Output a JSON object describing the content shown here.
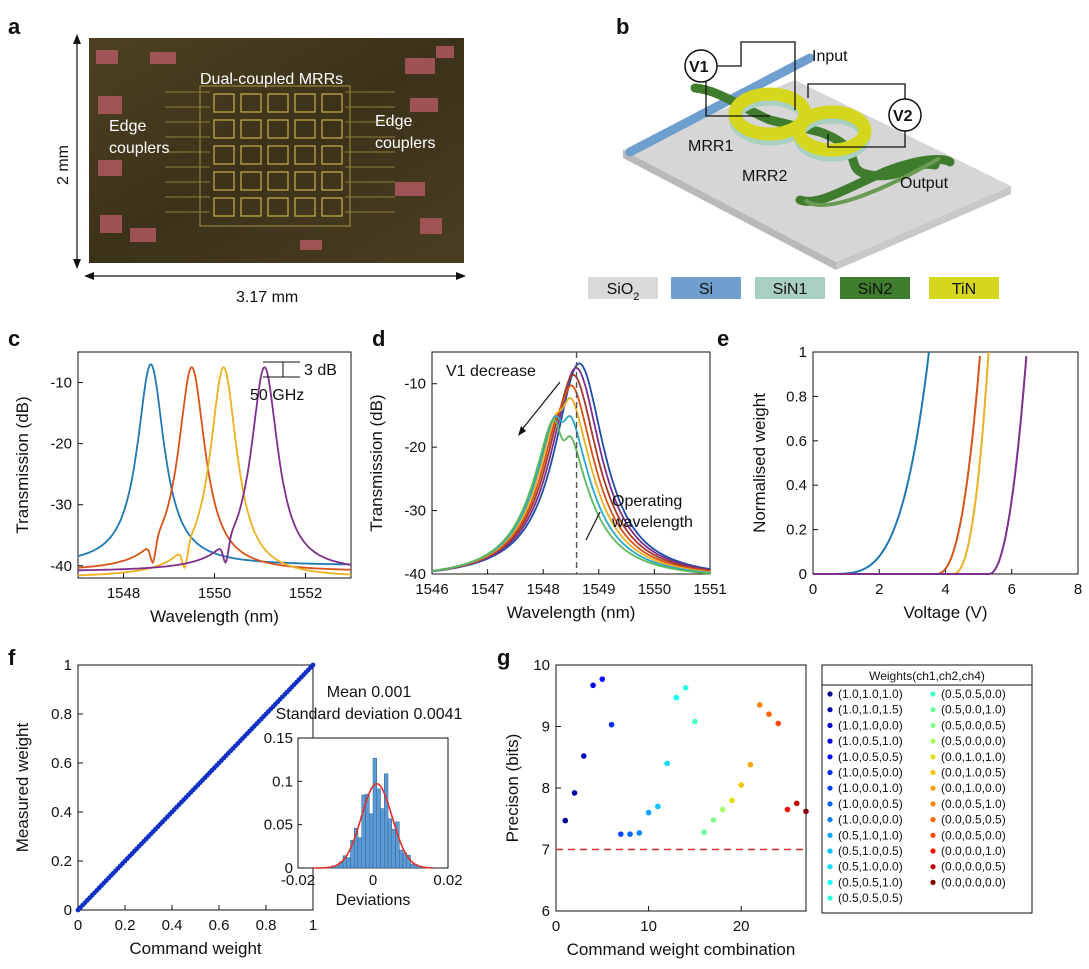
{
  "panel_labels": [
    "a",
    "b",
    "c",
    "d",
    "e",
    "f",
    "g"
  ],
  "panel_a": {
    "labels": {
      "mrrs": "Dual-coupled MRRs",
      "left_couplers": [
        "Edge",
        "couplers"
      ],
      "right_couplers": [
        "Edge",
        "couplers"
      ]
    },
    "height_dim": "2 mm",
    "width_dim": "3.17 mm"
  },
  "panel_b": {
    "labels": {
      "v1": "V1",
      "v2": "V2",
      "input": "Input",
      "output": "Output",
      "mrr1": "MRR1",
      "mrr2": "MRR2"
    },
    "materials": [
      {
        "name": "SiO",
        "sub": "2",
        "color": "#d9d9d9"
      },
      {
        "name": "Si",
        "sub": "",
        "color": "#6f9fce"
      },
      {
        "name": "SiN1",
        "sub": "",
        "color": "#a8cfc0"
      },
      {
        "name": "SiN2",
        "sub": "",
        "color": "#3f7c2e"
      },
      {
        "name": "TiN",
        "sub": "",
        "color": "#d4d71e"
      }
    ]
  },
  "chart_data": [
    {
      "panel": "c",
      "type": "line",
      "xlabel": "Wavelength (nm)",
      "ylabel": "Transmission (dB)",
      "xlim": [
        1547,
        1553
      ],
      "ylim": [
        -42,
        -5
      ],
      "xticks": [
        1548,
        1550,
        1552
      ],
      "yticks": [
        -10,
        -20,
        -30,
        -40
      ],
      "annotations": [
        "3 dB",
        "50 GHz"
      ],
      "series": [
        {
          "color": "#1f77b4",
          "peak_nm": 1548.6,
          "peak_db": -7,
          "floor_db": -40
        },
        {
          "color": "#d95319",
          "peak_nm": 1549.5,
          "peak_db": -7.5,
          "floor_db": -41
        },
        {
          "color": "#edb120",
          "peak_nm": 1550.2,
          "peak_db": -7.5,
          "floor_db": -42
        },
        {
          "color": "#7e2f8e",
          "peak_nm": 1551.1,
          "peak_db": -7.5,
          "floor_db": -41
        }
      ]
    },
    {
      "panel": "d",
      "type": "line",
      "xlabel": "Wavelength (nm)",
      "ylabel": "Transmission (dB)",
      "xlim": [
        1546,
        1551
      ],
      "ylim": [
        -40,
        -5
      ],
      "xticks": [
        1546,
        1547,
        1548,
        1549,
        1550,
        1551
      ],
      "yticks": [
        -10,
        -20,
        -30,
        -40
      ],
      "operating_wavelength_nm": 1548.6,
      "annotations": [
        "V1 decrease",
        "Operating",
        "wavelength"
      ],
      "series": [
        {
          "color": "#1f4ea8",
          "peak_db": -6.8,
          "dip_db": 0
        },
        {
          "color": "#7e2f8e",
          "peak_db": -7.5,
          "dip_db": 0.5
        },
        {
          "color": "#a23b2a",
          "peak_db": -8.5,
          "dip_db": 1.0
        },
        {
          "color": "#d95319",
          "peak_db": -9.8,
          "dip_db": 1.8
        },
        {
          "color": "#edb120",
          "peak_db": -11.0,
          "dip_db": 2.5
        },
        {
          "color": "#2aa7c9",
          "peak_db": -12.5,
          "dip_db": 3.5
        },
        {
          "color": "#5cb85c",
          "peak_db": -14.0,
          "dip_db": 4.5
        }
      ]
    },
    {
      "panel": "e",
      "type": "line",
      "xlabel": "Voltage (V)",
      "ylabel": "Normalised weight",
      "xlim": [
        0,
        8
      ],
      "ylim": [
        0,
        1
      ],
      "xticks": [
        0,
        2,
        4,
        6,
        8
      ],
      "yticks": [
        0,
        0.2,
        0.4,
        0.6,
        0.8,
        1
      ],
      "series": [
        {
          "color": "#1f77b4",
          "x0": 0.3,
          "x1": 3.5,
          "p": 4
        },
        {
          "color": "#d95319",
          "x0": 3.7,
          "x1": 5.05,
          "p": 2.5
        },
        {
          "color": "#edb120",
          "x0": 4.2,
          "x1": 5.3,
          "p": 2.5
        },
        {
          "color": "#7e2f8e",
          "x0": 5.3,
          "x1": 6.45,
          "p": 2.2
        }
      ]
    },
    {
      "panel": "f",
      "type": "scatter",
      "xlabel": "Command weight",
      "ylabel": "Measured weight",
      "xlim": [
        0,
        1
      ],
      "ylim": [
        0,
        1
      ],
      "xticks": [
        0,
        0.2,
        0.4,
        0.6,
        0.8,
        1
      ],
      "yticks": [
        0,
        0.2,
        0.4,
        0.6,
        0.8,
        1
      ],
      "inset": {
        "type": "bar",
        "xlabel": "Deviations",
        "xlim": [
          -0.02,
          0.02
        ],
        "ylim": [
          0,
          0.15
        ],
        "xticks": [
          -0.02,
          0,
          0.02
        ],
        "yticks": [
          0,
          0.05,
          0.1,
          0.15
        ],
        "mean": 0.001,
        "std": 0.0041,
        "text": [
          "Mean 0.001",
          "Standard deviation 0.0041"
        ]
      }
    },
    {
      "panel": "g",
      "type": "scatter",
      "xlabel": "Command weight combination",
      "ylabel": "Precison (bits)",
      "xlim": [
        0,
        27
      ],
      "ylim": [
        6,
        10
      ],
      "xticks": [
        0,
        10,
        20
      ],
      "yticks": [
        6,
        7,
        8,
        9,
        10
      ],
      "threshold": 7,
      "legend_title": "Weights(ch1,ch2,ch4)",
      "points": [
        {
          "label": "(1.0,1.0,1.0)",
          "x": 1,
          "y": 7.47,
          "color": "#00008f"
        },
        {
          "label": "(1.0,1.0,1.5)",
          "x": 2,
          "y": 7.92,
          "color": "#0000ad"
        },
        {
          "label": "(1.0,1.0,0.0)",
          "x": 3,
          "y": 8.52,
          "color": "#0000cc"
        },
        {
          "label": "(1.0,0.5,1.0)",
          "x": 4,
          "y": 9.67,
          "color": "#0000ea"
        },
        {
          "label": "(1.0,0.5,0.5)",
          "x": 5,
          "y": 9.77,
          "color": "#000aff"
        },
        {
          "label": "(1.0,0.5,0.0)",
          "x": 6,
          "y": 9.03,
          "color": "#0028ff"
        },
        {
          "label": "(1.0,0.0,1.0)",
          "x": 7,
          "y": 7.25,
          "color": "#0047ff"
        },
        {
          "label": "(1.0,0.0,0.5)",
          "x": 8,
          "y": 7.25,
          "color": "#0066ff"
        },
        {
          "label": "(1.0,0.0,0.0)",
          "x": 9,
          "y": 7.27,
          "color": "#0085ff"
        },
        {
          "label": "(0.5,1.0,1.0)",
          "x": 10,
          "y": 7.6,
          "color": "#00a3ff"
        },
        {
          "label": "(0.5,1.0,0.5)",
          "x": 11,
          "y": 7.7,
          "color": "#00c2ff"
        },
        {
          "label": "(0.5,1.0,0.0)",
          "x": 12,
          "y": 8.4,
          "color": "#00e0ff"
        },
        {
          "label": "(0.5,0.5,1.0)",
          "x": 13,
          "y": 9.47,
          "color": "#0affff"
        },
        {
          "label": "(0.5,0.5,0.5)",
          "x": 14,
          "y": 9.63,
          "color": "#28ffe0"
        },
        {
          "label": "(0.5,0.5,0.0)",
          "x": 15,
          "y": 9.08,
          "color": "#47ffc2"
        },
        {
          "label": "(0.5,0.0,1.0)",
          "x": 16,
          "y": 7.28,
          "color": "#66ffa3"
        },
        {
          "label": "(0.5,0.0,0.5)",
          "x": 17,
          "y": 7.48,
          "color": "#85ff85"
        },
        {
          "label": "(0.5,0.0,0.0)",
          "x": 18,
          "y": 7.65,
          "color": "#a3ff66"
        },
        {
          "label": "(0.0,1.0,1.0)",
          "x": 19,
          "y": 7.8,
          "color": "#e0e000"
        },
        {
          "label": "(0.0,1.0,0.5)",
          "x": 20,
          "y": 8.05,
          "color": "#f5c400"
        },
        {
          "label": "(0.0,1.0,0.0)",
          "x": 21,
          "y": 8.38,
          "color": "#ffa300"
        },
        {
          "label": "(0.0,0.5,1.0)",
          "x": 22,
          "y": 9.35,
          "color": "#ff8500"
        },
        {
          "label": "(0.0,0.5,0.5)",
          "x": 23,
          "y": 9.2,
          "color": "#ff6600"
        },
        {
          "label": "(0.0,0.5,0.0)",
          "x": 24,
          "y": 9.05,
          "color": "#ff4700"
        },
        {
          "label": "(0.0,0.0,1.0)",
          "x": 25,
          "y": 7.65,
          "color": "#ff0a00"
        },
        {
          "label": "(0.0,0.0,0.5)",
          "x": 26,
          "y": 7.75,
          "color": "#c20000"
        },
        {
          "label": "(0.0,0.0,0.0)",
          "x": 27,
          "y": 7.62,
          "color": "#800000"
        }
      ]
    }
  ]
}
